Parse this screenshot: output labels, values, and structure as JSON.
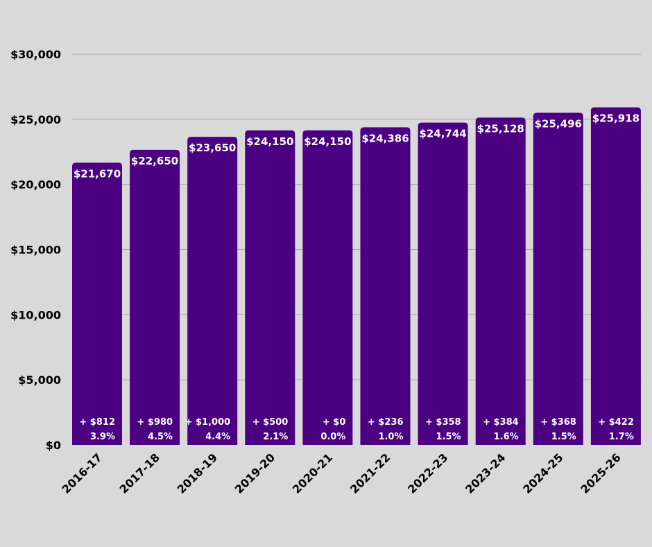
{
  "chart_data": {
    "type": "bar",
    "categories": [
      "2016-17",
      "2017-18",
      "2018-19",
      "2019-20",
      "2020-21",
      "2021-22",
      "2022-23",
      "2023-24",
      "2024-25",
      "2025-26"
    ],
    "values": [
      21670,
      22650,
      23650,
      24150,
      24150,
      24386,
      24744,
      25128,
      25496,
      25918
    ],
    "value_labels": [
      "$21,670",
      "$22,650",
      "$23,650",
      "$24,150",
      "$24,150",
      "$24,386",
      "$24,744",
      "$25,128",
      "$25,496",
      "$25,918"
    ],
    "change_labels": [
      "+ $812",
      "+ $980",
      "+ $1,000",
      "+ $500",
      "+ $0",
      "+ $236",
      "+ $358",
      "+ $384",
      "+ $368",
      "+ $422"
    ],
    "percent_labels": [
      "3.9%",
      "4.5%",
      "4.4%",
      "2.1%",
      "0.0%",
      "1.0%",
      "1.5%",
      "1.6%",
      "1.5%",
      "1.7%"
    ],
    "ylim": [
      0,
      30000
    ],
    "yticks": [
      0,
      5000,
      10000,
      15000,
      20000,
      25000,
      30000
    ],
    "ytick_labels": [
      "$0",
      "$5,000",
      "$10,000",
      "$15,000",
      "$20,000",
      "$25,000",
      "$30,000"
    ],
    "title": "",
    "xlabel": "",
    "ylabel": "",
    "grid": true,
    "bar_color": "#4b0082",
    "background": "#d9d9d9",
    "gridline_color": "#a6a6a6"
  }
}
